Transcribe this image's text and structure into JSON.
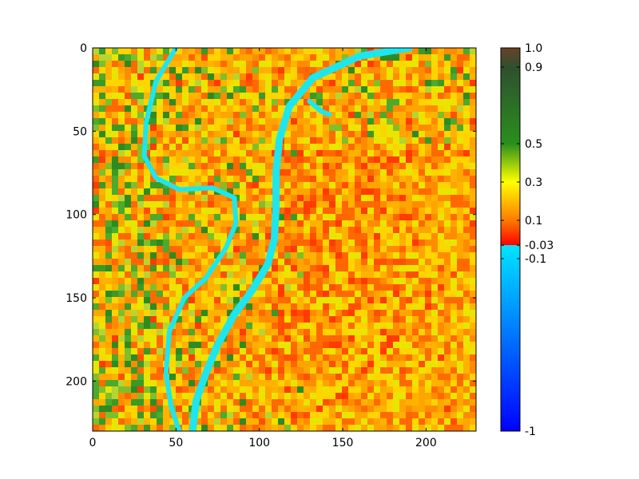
{
  "chart_data": {
    "type": "heatmap",
    "title": "",
    "xlabel": "",
    "ylabel": "",
    "image_size": [
      230,
      230
    ],
    "xlim": [
      0,
      230
    ],
    "ylim": [
      230,
      0
    ],
    "x_ticks": [
      "0",
      "50",
      "100",
      "150",
      "200"
    ],
    "y_ticks": [
      "0",
      "50",
      "100",
      "150",
      "200"
    ],
    "colorbar": {
      "range": [
        -1,
        1.0
      ],
      "tick_values": [
        1.0,
        0.9,
        0.5,
        0.3,
        0.1,
        -0.03,
        -0.1,
        -1
      ],
      "tick_labels": [
        "1.0",
        "0.9",
        "0.5",
        "0.3",
        "0.1",
        "-0.03",
        "-0.1",
        "-1"
      ],
      "segments": [
        {
          "from": -1,
          "to": -0.03,
          "colors": [
            "#0000ff",
            "#00e5ff"
          ]
        },
        {
          "from": -0.03,
          "to": 0.1,
          "colors": [
            "#ff0000",
            "#ff7a00"
          ]
        },
        {
          "from": 0.1,
          "to": 0.3,
          "colors": [
            "#ff7a00",
            "#ffff00"
          ]
        },
        {
          "from": 0.3,
          "to": 0.5,
          "colors": [
            "#ffff00",
            "#2a8f1d"
          ]
        },
        {
          "from": 0.5,
          "to": 0.9,
          "colors": [
            "#2a8f1d",
            "#2f4f2f"
          ]
        },
        {
          "from": 0.9,
          "to": 1.0,
          "colors": [
            "#2f4f2f",
            "#6b4226"
          ]
        }
      ]
    },
    "scene": {
      "base_colors": [
        "#ff6a00",
        "#ff8c00",
        "#ffb300",
        "#ffd400",
        "#e8e600",
        "#ffa500"
      ],
      "vegetation_colors": [
        "#2e8b22",
        "#3a9a28",
        "#4caa2c",
        "#7fbf2a",
        "#b7d531"
      ],
      "urban_colors": [
        "#ff3b00",
        "#ff5000",
        "#ff6500"
      ],
      "water_color": "#1ee6ee"
    }
  }
}
